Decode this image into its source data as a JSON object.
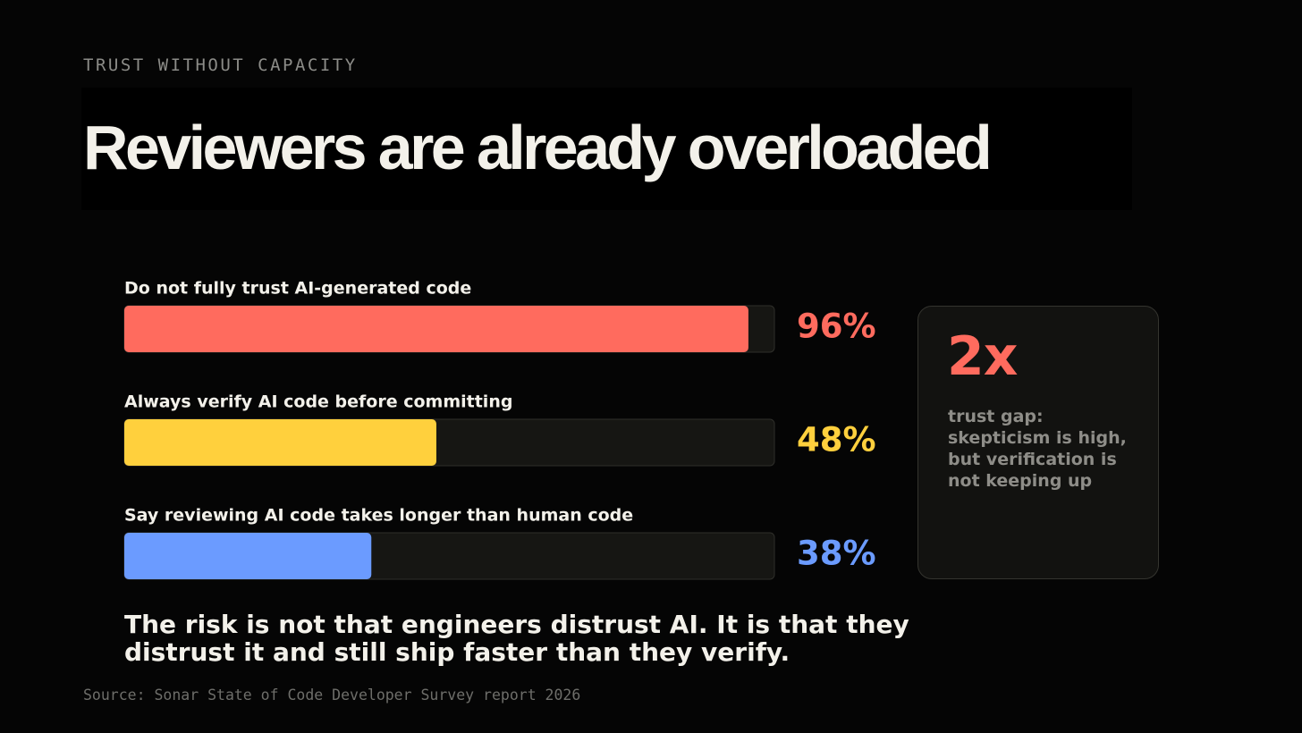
{
  "chart_data": {
    "type": "bar",
    "orientation": "horizontal",
    "eyebrow": "TRUST WITHOUT CAPACITY",
    "title": "Reviewers are already overloaded",
    "categories": [
      "Do not fully trust AI-generated code",
      "Always verify AI code before committing",
      "Say reviewing AI code takes longer than human code"
    ],
    "values": [
      96,
      48,
      38
    ],
    "value_labels": [
      "96%",
      "48%",
      "38%"
    ],
    "colors": [
      "#ff6b5e",
      "#ffd03d",
      "#6b9bff"
    ],
    "xlim": [
      0,
      100
    ],
    "callout": {
      "value": "2x",
      "text": "trust gap: skepticism is high, but verification is not keeping up"
    },
    "footnote": "The risk is not that engineers distrust AI. It is that they distrust it and still ship faster than they verify.",
    "source": "Source: Sonar State of Code Developer Survey report 2026"
  }
}
